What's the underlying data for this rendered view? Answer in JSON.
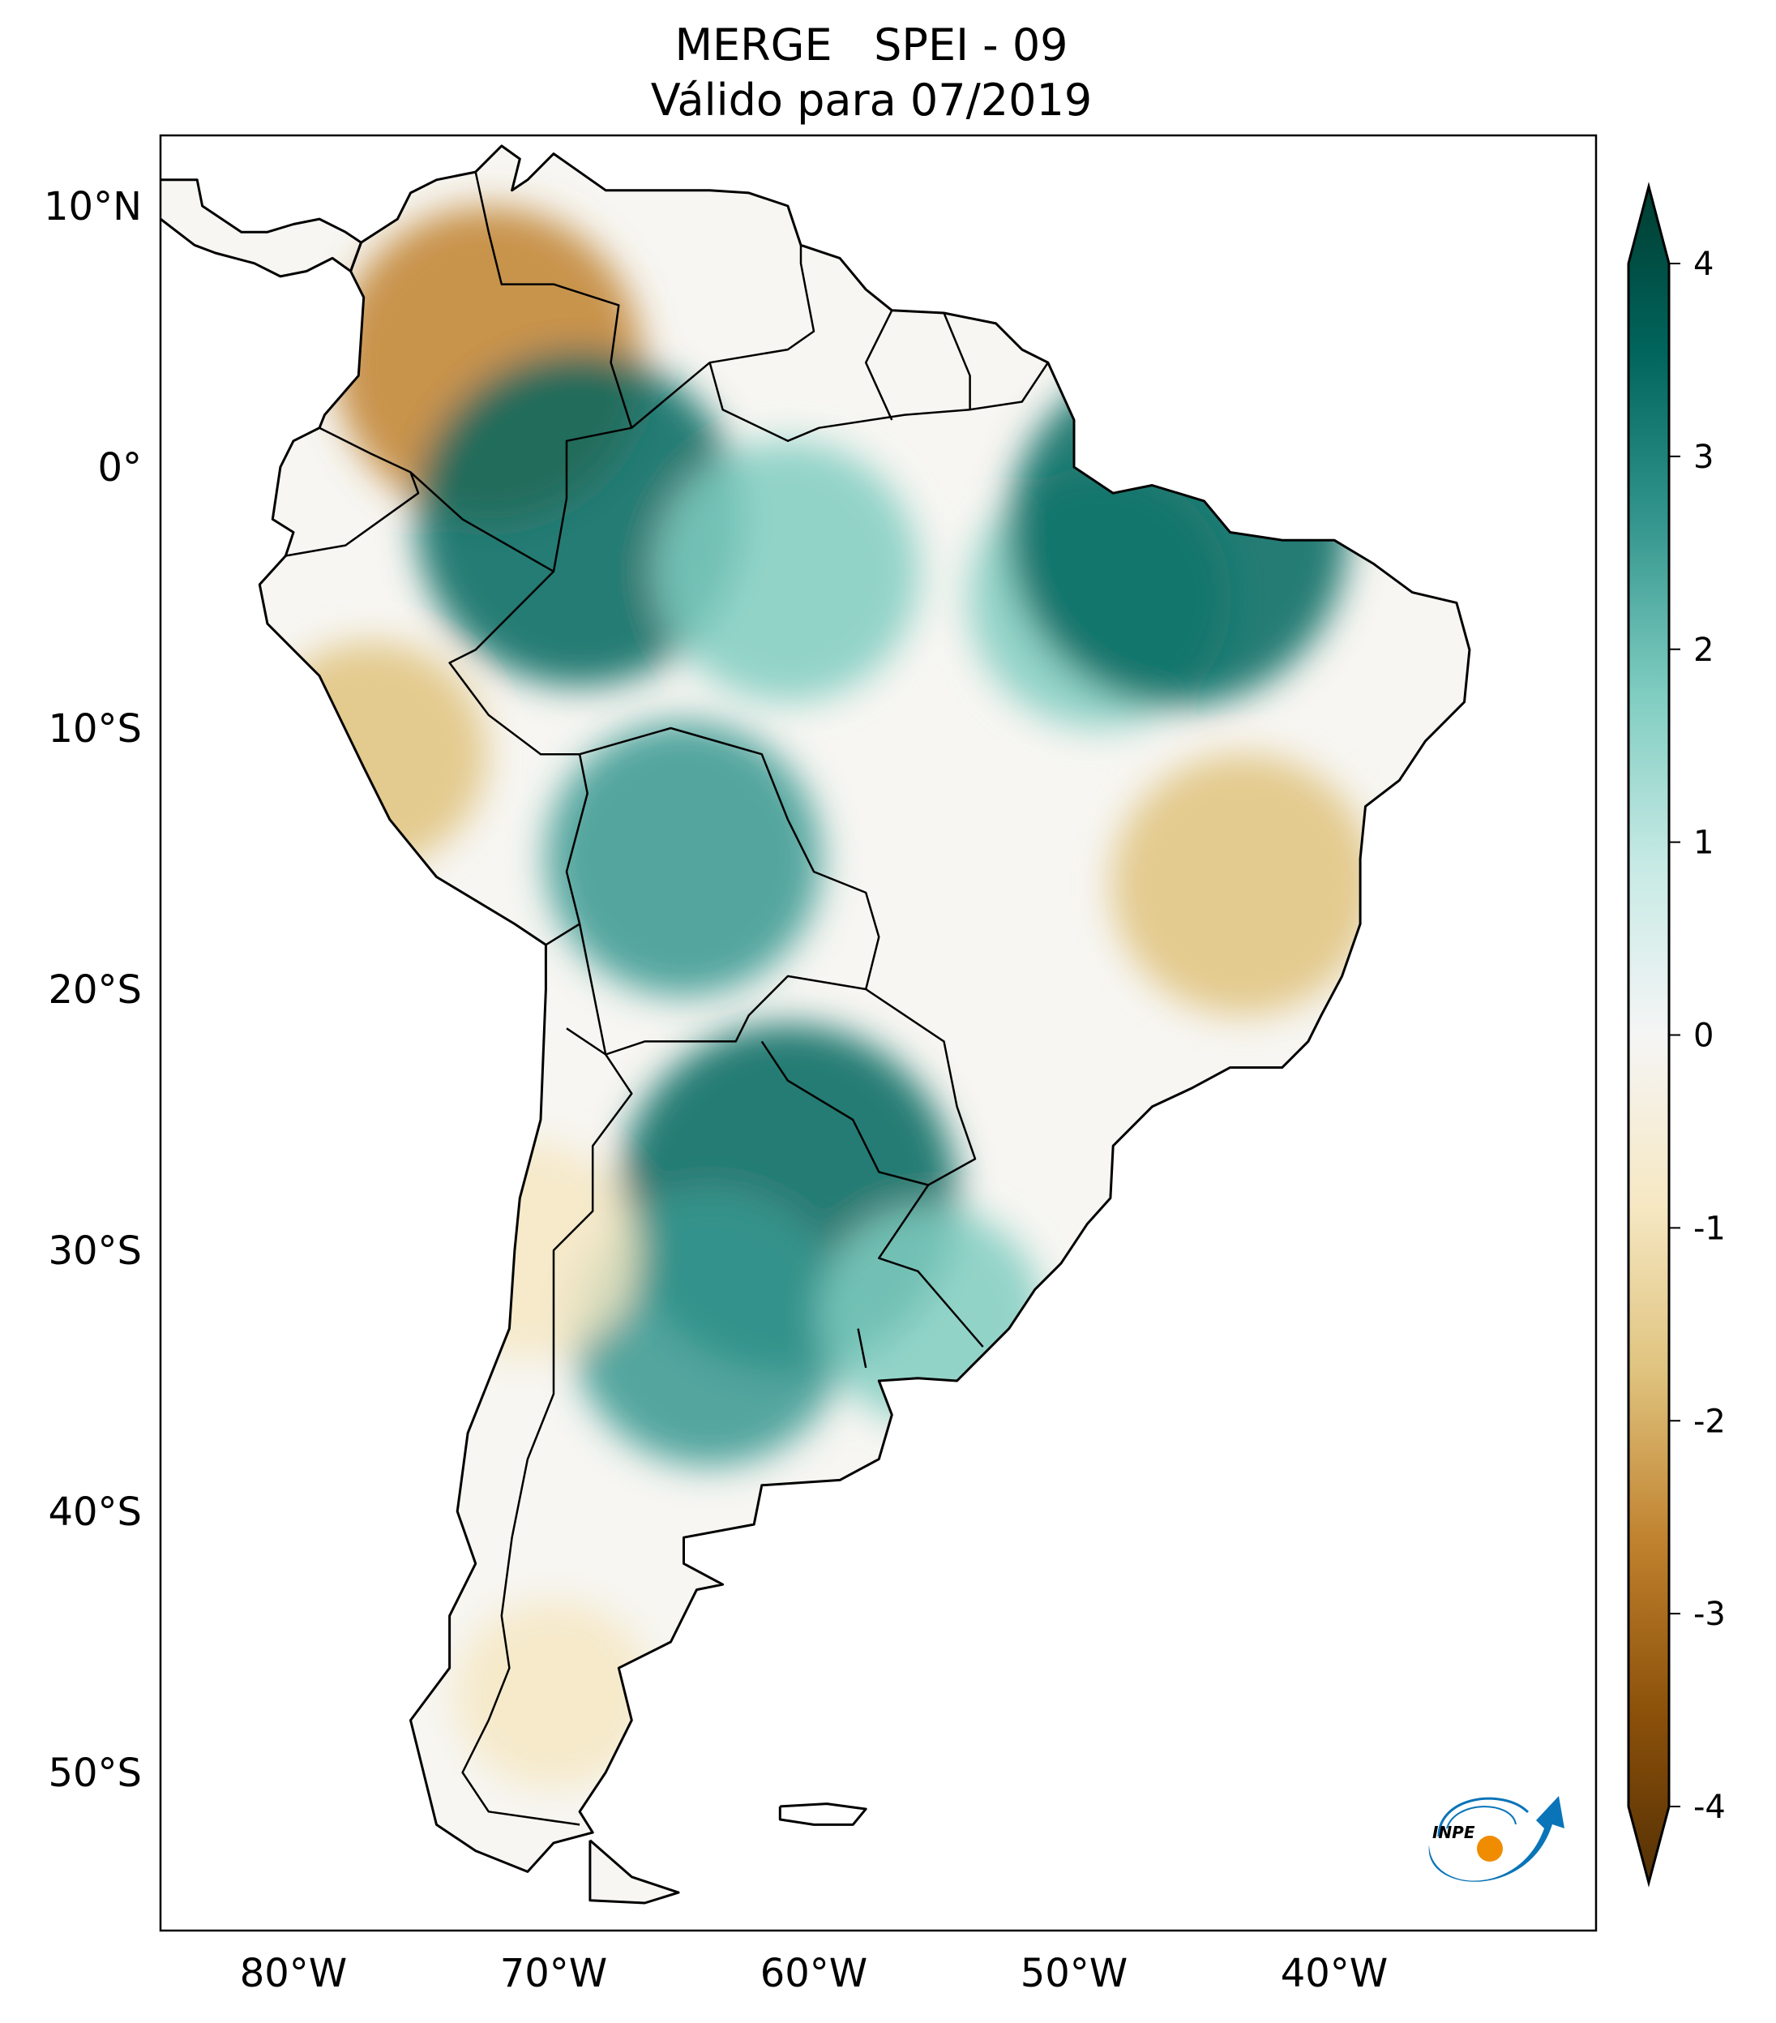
{
  "title": "MERGE   SPEI - 09",
  "subtitle": "Válido para 07/2019",
  "lat_ticks": [
    {
      "value": 10,
      "label": "10°N"
    },
    {
      "value": 0,
      "label": "0°"
    },
    {
      "value": -10,
      "label": "10°S"
    },
    {
      "value": -20,
      "label": "20°S"
    },
    {
      "value": -30,
      "label": "30°S"
    },
    {
      "value": -40,
      "label": "40°S"
    },
    {
      "value": -50,
      "label": "50°S"
    }
  ],
  "lon_ticks": [
    {
      "value": -80,
      "label": "80°W"
    },
    {
      "value": -70,
      "label": "70°W"
    },
    {
      "value": -60,
      "label": "60°W"
    },
    {
      "value": -50,
      "label": "50°W"
    },
    {
      "value": -40,
      "label": "40°W"
    }
  ],
  "colorbar": {
    "min": -4,
    "max": 4,
    "extend": "both",
    "ticks": [
      {
        "value": 4,
        "label": "4"
      },
      {
        "value": 3,
        "label": "3"
      },
      {
        "value": 2,
        "label": "2"
      },
      {
        "value": 1,
        "label": "1"
      },
      {
        "value": 0,
        "label": "0"
      },
      {
        "value": -1,
        "label": "-1"
      },
      {
        "value": -2,
        "label": "-2"
      },
      {
        "value": -3,
        "label": "-3"
      },
      {
        "value": -4,
        "label": "-4"
      }
    ],
    "colormap": "BrBG",
    "colors": [
      "#543005",
      "#8c510a",
      "#bf812d",
      "#dfc27d",
      "#f6e8c3",
      "#f5f5f5",
      "#c7eae5",
      "#80cdc1",
      "#35978f",
      "#01665e",
      "#003c30"
    ]
  },
  "logo": {
    "text": "INPE",
    "colors": [
      "#0a74b8",
      "#f08c00"
    ]
  },
  "chart_data": {
    "type": "heatmap",
    "title": "MERGE   SPEI - 09",
    "subtitle": "Válido para 07/2019",
    "xlim": [
      -85,
      -30
    ],
    "ylim": [
      -56,
      12.7
    ],
    "regions": [
      {
        "area": "Colombia (central Andes)",
        "lon": -72.5,
        "lat": 4,
        "value": -2.5
      },
      {
        "area": "Western Amazon",
        "lon": -69,
        "lat": -2,
        "value": 2.8
      },
      {
        "area": "Central Amazon",
        "lon": -61,
        "lat": -4,
        "value": 1.8
      },
      {
        "area": "Eastern Amazon / Pará",
        "lon": -49,
        "lat": -5,
        "value": 1.8
      },
      {
        "area": "Maranhão coast",
        "lon": -46,
        "lat": -2.5,
        "value": 3
      },
      {
        "area": "Bolivia lowlands",
        "lon": -65,
        "lat": -15,
        "value": 2
      },
      {
        "area": "Minas Gerais / Bahia",
        "lon": -43.5,
        "lat": -16,
        "value": -1.8
      },
      {
        "area": "Peru coast",
        "lon": -77,
        "lat": -11,
        "value": -1.3
      },
      {
        "area": "Northern Argentina / Paraguay",
        "lon": -61,
        "lat": -28,
        "value": 3
      },
      {
        "area": "Pampas",
        "lon": -64,
        "lat": -33,
        "value": 2
      },
      {
        "area": "Uruguay",
        "lon": -55.5,
        "lat": -32.5,
        "value": 1.2
      },
      {
        "area": "Central Chile",
        "lon": -71,
        "lat": -30,
        "value": -1.2
      },
      {
        "area": "Southern Patagonia",
        "lon": -70,
        "lat": -47,
        "value": -0.8
      }
    ]
  }
}
